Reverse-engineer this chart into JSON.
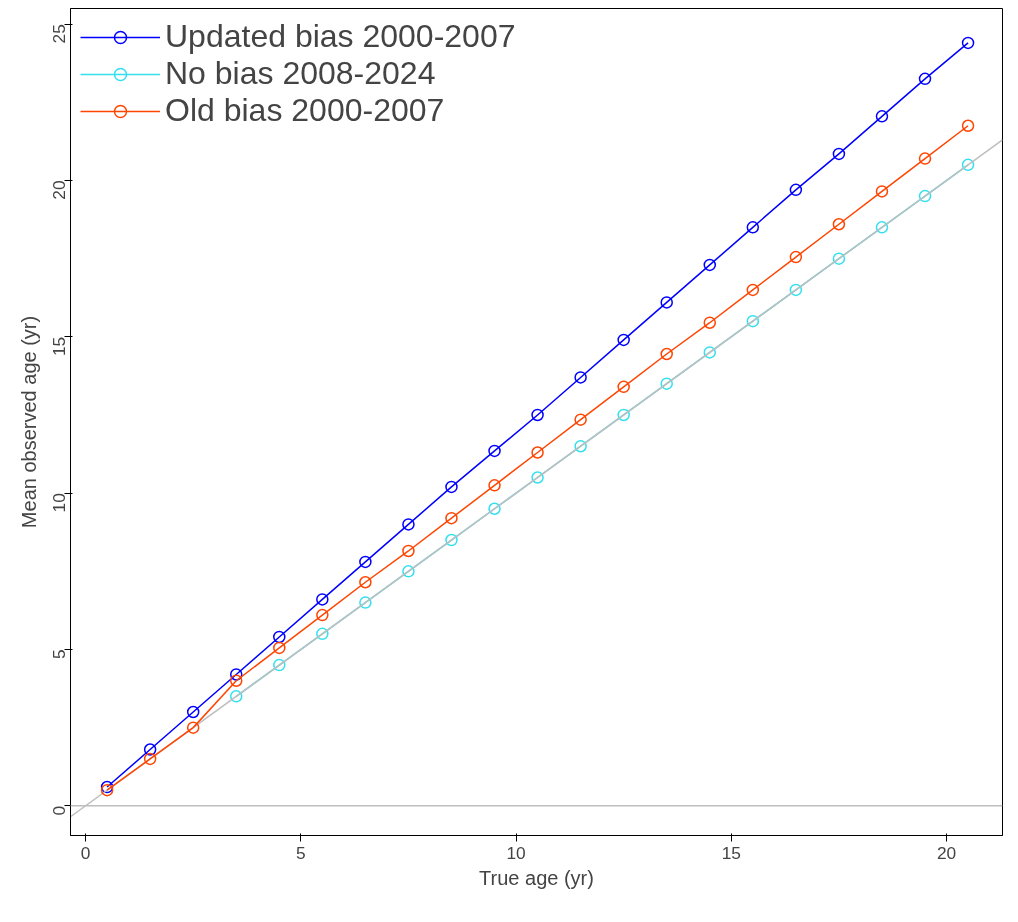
{
  "chart_data": {
    "type": "line",
    "xlabel": "True age (yr)",
    "ylabel": "Mean observed age (yr)",
    "x": [
      0.5,
      1.5,
      2.5,
      3.5,
      4.5,
      5.5,
      6.5,
      7.5,
      8.5,
      9.5,
      10.5,
      11.5,
      12.5,
      13.5,
      14.5,
      15.5,
      16.5,
      17.5,
      18.5,
      19.5,
      20.5
    ],
    "series": [
      {
        "name": "Updated bias 2000-2007",
        "color": "#0000ff",
        "values": [
          0.6,
          1.8,
          3.0,
          4.2,
          5.4,
          6.6,
          7.8,
          9.0,
          10.2,
          11.35,
          12.5,
          13.7,
          14.9,
          16.1,
          17.3,
          18.5,
          19.7,
          20.85,
          22.05,
          23.25,
          24.4
        ]
      },
      {
        "name": "No bias 2008-2024",
        "color": "#33e0f0",
        "values": [
          null,
          null,
          null,
          3.5,
          4.5,
          5.5,
          6.5,
          7.5,
          8.5,
          9.5,
          10.5,
          11.5,
          12.5,
          13.5,
          14.5,
          15.5,
          16.5,
          17.5,
          18.5,
          19.5,
          20.5
        ]
      },
      {
        "type": "line",
        "color": "#bebebe",
        "marker": "none",
        "x": [
          -0.35,
          21.3
        ],
        "values": [
          -0.35,
          21.3
        ]
      },
      {
        "name": "Old bias 2000-2007",
        "color": "#ff4500",
        "values": [
          0.5,
          1.5,
          2.5,
          4.0,
          5.05,
          6.1,
          7.15,
          8.15,
          9.2,
          10.25,
          11.3,
          12.35,
          13.4,
          14.45,
          15.45,
          16.5,
          17.55,
          18.6,
          19.65,
          20.7,
          21.75
        ]
      }
    ],
    "ref_lines": [
      {
        "axis": "y",
        "value": 0,
        "color": "#bebebe"
      }
    ],
    "xlim": [
      -0.35,
      21.3
    ],
    "ylim": [
      -0.95,
      25.5
    ],
    "xticks": [
      0,
      5,
      10,
      15,
      20
    ],
    "yticks": [
      0,
      5,
      10,
      15,
      20,
      25
    ],
    "marker": "circle",
    "line_style": "solid",
    "legend": "top left",
    "grid": false
  }
}
